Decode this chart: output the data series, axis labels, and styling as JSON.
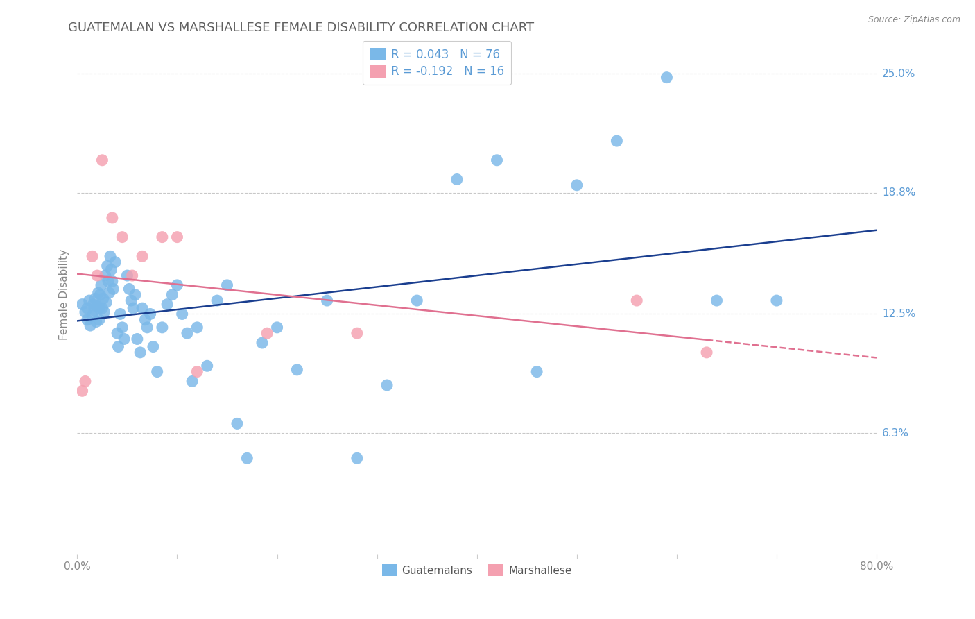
{
  "title": "GUATEMALAN VS MARSHALLESE FEMALE DISABILITY CORRELATION CHART",
  "source": "Source: ZipAtlas.com",
  "ylabel": "Female Disability",
  "xmin": 0.0,
  "xmax": 0.8,
  "ymin": 0.0,
  "ymax": 0.27,
  "r_guatemalan": 0.043,
  "n_guatemalan": 76,
  "r_marshallese": -0.192,
  "n_marshallese": 16,
  "guatemalan_color": "#7ab8e8",
  "marshallese_color": "#f4a0b0",
  "trendline_guatemalan_color": "#1a3e8f",
  "trendline_marshallese_color": "#e07090",
  "legend_label_guatemalan": "Guatemalans",
  "legend_label_marshallese": "Marshallese",
  "background_color": "#ffffff",
  "grid_color": "#c8c8c8",
  "title_color": "#606060",
  "axis_label_color": "#5b9bd5",
  "ytick_vals": [
    0.0,
    0.063,
    0.125,
    0.188,
    0.25
  ],
  "ytick_labels": [
    "",
    "6.3%",
    "12.5%",
    "18.8%",
    "25.0%"
  ],
  "guatemalan_x": [
    0.005,
    0.008,
    0.01,
    0.01,
    0.012,
    0.013,
    0.015,
    0.016,
    0.017,
    0.018,
    0.019,
    0.02,
    0.021,
    0.022,
    0.022,
    0.023,
    0.024,
    0.025,
    0.026,
    0.027,
    0.028,
    0.029,
    0.03,
    0.031,
    0.032,
    0.033,
    0.034,
    0.035,
    0.036,
    0.038,
    0.04,
    0.041,
    0.043,
    0.045,
    0.047,
    0.05,
    0.052,
    0.054,
    0.056,
    0.058,
    0.06,
    0.063,
    0.065,
    0.068,
    0.07,
    0.073,
    0.076,
    0.08,
    0.085,
    0.09,
    0.095,
    0.1,
    0.105,
    0.11,
    0.115,
    0.12,
    0.13,
    0.14,
    0.15,
    0.16,
    0.17,
    0.185,
    0.2,
    0.22,
    0.25,
    0.28,
    0.31,
    0.34,
    0.38,
    0.42,
    0.46,
    0.5,
    0.54,
    0.59,
    0.64,
    0.7
  ],
  "guatemalan_y": [
    0.13,
    0.126,
    0.122,
    0.128,
    0.132,
    0.119,
    0.124,
    0.13,
    0.127,
    0.133,
    0.121,
    0.129,
    0.136,
    0.128,
    0.122,
    0.135,
    0.14,
    0.128,
    0.133,
    0.126,
    0.145,
    0.131,
    0.15,
    0.142,
    0.136,
    0.155,
    0.148,
    0.142,
    0.138,
    0.152,
    0.115,
    0.108,
    0.125,
    0.118,
    0.112,
    0.145,
    0.138,
    0.132,
    0.128,
    0.135,
    0.112,
    0.105,
    0.128,
    0.122,
    0.118,
    0.125,
    0.108,
    0.095,
    0.118,
    0.13,
    0.135,
    0.14,
    0.125,
    0.115,
    0.09,
    0.118,
    0.098,
    0.132,
    0.14,
    0.068,
    0.05,
    0.11,
    0.118,
    0.096,
    0.132,
    0.05,
    0.088,
    0.132,
    0.195,
    0.205,
    0.095,
    0.192,
    0.215,
    0.248,
    0.132,
    0.132
  ],
  "marshallese_x": [
    0.005,
    0.008,
    0.015,
    0.02,
    0.025,
    0.035,
    0.045,
    0.055,
    0.065,
    0.085,
    0.1,
    0.12,
    0.19,
    0.28,
    0.56,
    0.63
  ],
  "marshallese_y": [
    0.085,
    0.09,
    0.155,
    0.145,
    0.205,
    0.175,
    0.165,
    0.145,
    0.155,
    0.165,
    0.165,
    0.095,
    0.115,
    0.115,
    0.132,
    0.105
  ]
}
